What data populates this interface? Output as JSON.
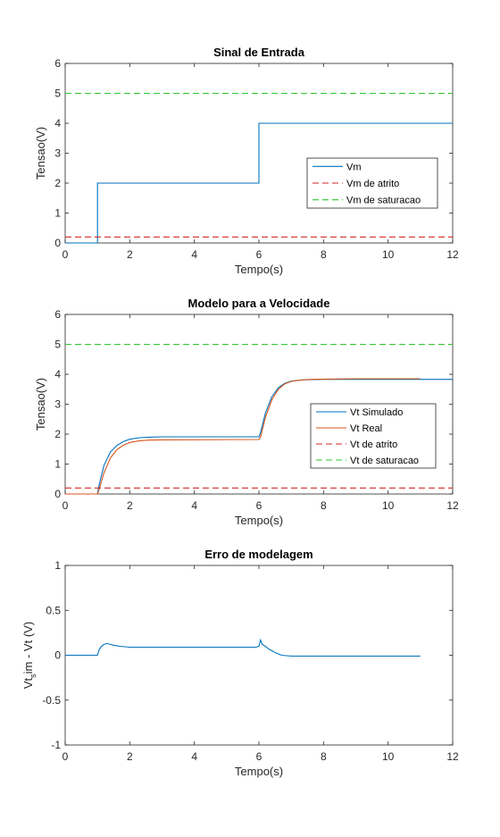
{
  "chart_data": [
    {
      "type": "line",
      "title": "Sinal de Entrada",
      "xlabel": "Tempo(s)",
      "ylabel": "Tensao(V)",
      "xlim": [
        0,
        12
      ],
      "ylim": [
        0,
        6
      ],
      "xticks": [
        "0",
        "2",
        "4",
        "6",
        "8",
        "10",
        "12"
      ],
      "yticks": [
        "0",
        "1",
        "2",
        "3",
        "4",
        "5",
        "6"
      ],
      "grid": false,
      "legend": "right",
      "series": [
        {
          "name": "Vm",
          "color": "#0072BD",
          "style": "solid",
          "x": [
            0,
            1,
            1,
            6,
            6,
            12
          ],
          "y": [
            0,
            0,
            2,
            2,
            4,
            4
          ]
        },
        {
          "name": "Vm de atrito",
          "color": "#D62728",
          "style": "dashed",
          "x": [
            0,
            12
          ],
          "y": [
            0.2,
            0.2
          ]
        },
        {
          "name": "Vm de saturacao",
          "color": "#2CC72C",
          "style": "dashed",
          "x": [
            0,
            12
          ],
          "y": [
            5,
            5
          ]
        }
      ]
    },
    {
      "type": "line",
      "title": "Modelo para a Velocidade",
      "xlabel": "Tempo(s)",
      "ylabel": "Tensao(V)",
      "xlim": [
        0,
        12
      ],
      "ylim": [
        0,
        6
      ],
      "xticks": [
        "0",
        "2",
        "4",
        "6",
        "8",
        "10",
        "12"
      ],
      "yticks": [
        "0",
        "1",
        "2",
        "3",
        "4",
        "5",
        "6"
      ],
      "grid": false,
      "legend": "lower-right",
      "series": [
        {
          "name": "Vt Simulado",
          "color": "#0072BD",
          "style": "solid",
          "x": [
            0,
            1,
            1.05,
            1.2,
            1.4,
            1.6,
            1.8,
            2.0,
            2.3,
            2.6,
            3.0,
            6,
            6.05,
            6.2,
            6.4,
            6.6,
            6.8,
            7.0,
            7.3,
            7.6,
            8.0,
            9,
            10,
            11,
            12
          ],
          "y": [
            0,
            0,
            0.3,
            0.95,
            1.4,
            1.62,
            1.75,
            1.83,
            1.88,
            1.9,
            1.91,
            1.91,
            2.05,
            2.7,
            3.25,
            3.55,
            3.7,
            3.77,
            3.81,
            3.82,
            3.83,
            3.83,
            3.83,
            3.83,
            3.83
          ]
        },
        {
          "name": "Vt Real",
          "color": "#D95319",
          "style": "solid",
          "x": [
            0,
            1,
            1.05,
            1.2,
            1.4,
            1.6,
            1.8,
            2.0,
            2.3,
            2.6,
            3.0,
            6,
            6.05,
            6.2,
            6.4,
            6.6,
            6.8,
            7.0,
            7.3,
            7.6,
            8.0,
            9,
            10,
            11
          ],
          "y": [
            0,
            0,
            0.15,
            0.7,
            1.2,
            1.48,
            1.63,
            1.72,
            1.78,
            1.8,
            1.81,
            1.82,
            1.9,
            2.55,
            3.15,
            3.5,
            3.68,
            3.76,
            3.81,
            3.83,
            3.84,
            3.85,
            3.85,
            3.85
          ]
        },
        {
          "name": "Vt de atrito",
          "color": "#D62728",
          "style": "dashed",
          "x": [
            0,
            12
          ],
          "y": [
            0.2,
            0.2
          ]
        },
        {
          "name": "Vt de saturacao",
          "color": "#2CC72C",
          "style": "dashed",
          "x": [
            0,
            12
          ],
          "y": [
            5,
            5
          ]
        }
      ]
    },
    {
      "type": "line",
      "title": "Erro de modelagem",
      "xlabel": "Tempo(s)",
      "ylabel_main": "Vt",
      "ylabel_sub": "s",
      "ylabel_rest": "im - Vt (V)",
      "xlim": [
        0,
        12
      ],
      "ylim": [
        -1,
        1
      ],
      "xticks": [
        "0",
        "2",
        "4",
        "6",
        "8",
        "10",
        "12"
      ],
      "yticks": [
        "-1",
        "-0.5",
        "0",
        "0.5",
        "1"
      ],
      "grid": false,
      "series": [
        {
          "name": "",
          "color": "#0072BD",
          "style": "solid",
          "x": [
            0,
            1,
            1.05,
            1.1,
            1.2,
            1.3,
            1.4,
            1.5,
            1.7,
            2.0,
            2.5,
            3,
            3.5,
            4,
            4.5,
            5,
            5.5,
            5.9,
            6.0,
            6.05,
            6.1,
            6.2,
            6.3,
            6.5,
            6.7,
            7.0,
            8,
            9,
            10,
            11
          ],
          "y": [
            0,
            0,
            0.06,
            0.09,
            0.12,
            0.13,
            0.12,
            0.11,
            0.1,
            0.09,
            0.09,
            0.09,
            0.09,
            0.09,
            0.09,
            0.09,
            0.09,
            0.09,
            0.1,
            0.17,
            0.12,
            0.1,
            0.07,
            0.03,
            0.0,
            -0.01,
            -0.01,
            -0.01,
            -0.01,
            -0.01
          ]
        }
      ]
    }
  ]
}
